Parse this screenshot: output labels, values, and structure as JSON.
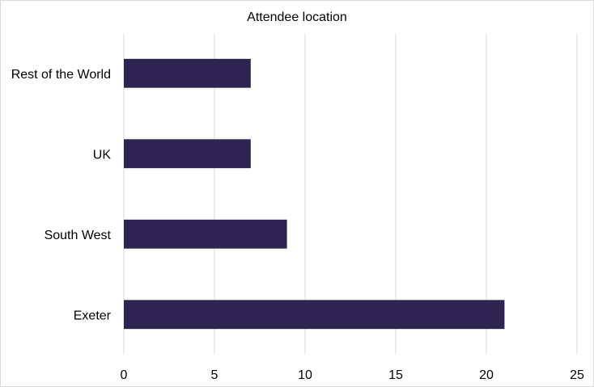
{
  "chart_data": {
    "type": "bar",
    "orientation": "horizontal",
    "title": "Attendee location",
    "categories": [
      "Exeter",
      "South West",
      "UK",
      "Rest of the World"
    ],
    "values": [
      21,
      9,
      7,
      7
    ],
    "xlim": [
      0,
      25
    ],
    "x_ticks": [
      0,
      5,
      10,
      15,
      20,
      25
    ],
    "xlabel": "",
    "ylabel": "",
    "grid": "vertical",
    "legend": "none",
    "bar_color": "#2e2451"
  }
}
